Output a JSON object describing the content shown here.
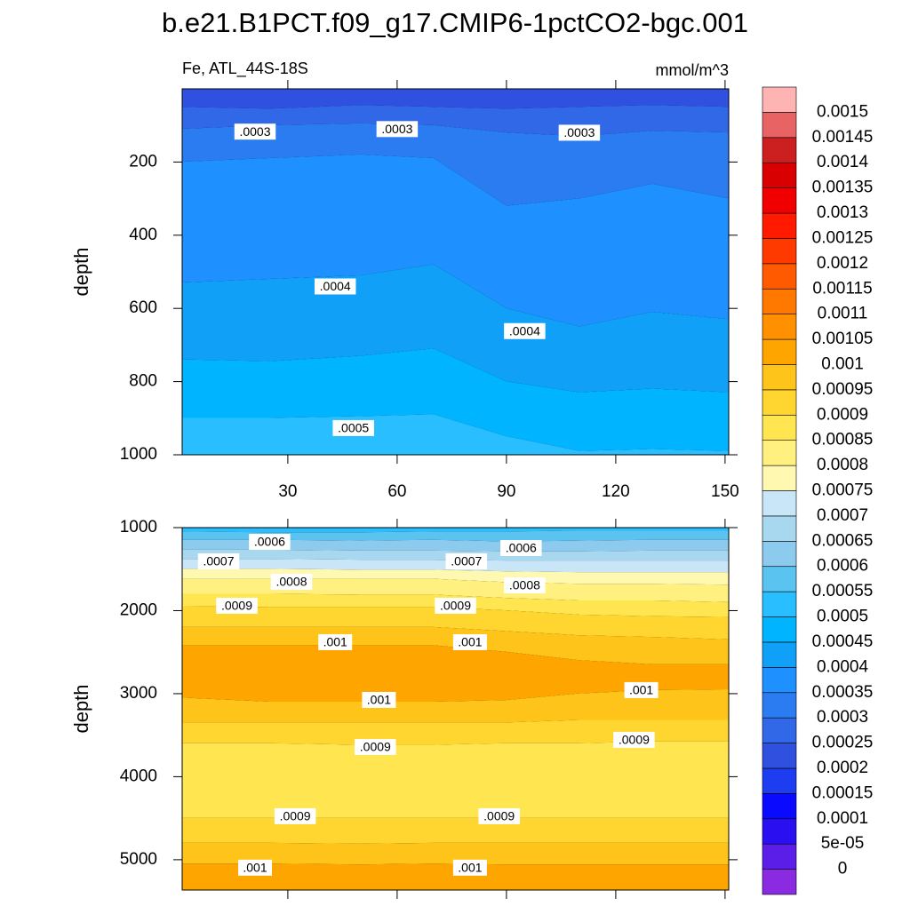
{
  "chart_data": [
    {
      "type": "contour",
      "title": "b.e21.B1PCT.f09_g17.CMIP6-1pctCO2-bgc.001",
      "subtitle_left": "Fe, ATL_44S-18S",
      "subtitle_right": "mmol/m^3",
      "y_label": "depth",
      "x": [
        1,
        25,
        50,
        70,
        90,
        110,
        130,
        151
      ],
      "xlim": [
        1,
        151
      ],
      "xticks": [
        30,
        60,
        90,
        120,
        150
      ],
      "xtick_labels": true,
      "ylim": [
        0,
        1000
      ],
      "yticks": [
        200,
        400,
        600,
        800,
        1000
      ],
      "y_reversed": true,
      "bands": [
        {
          "level": 0.0002,
          "bottom": [
            50,
            55,
            45,
            50,
            55,
            50,
            45,
            50
          ]
        },
        {
          "level": 0.00025,
          "bottom": [
            110,
            100,
            95,
            100,
            120,
            130,
            115,
            120
          ]
        },
        {
          "level": 0.0003,
          "bottom": [
            200,
            190,
            180,
            190,
            320,
            300,
            260,
            300
          ]
        },
        {
          "level": 0.00035,
          "bottom": [
            530,
            520,
            510,
            480,
            600,
            650,
            610,
            630
          ]
        },
        {
          "level": 0.0004,
          "bottom": [
            740,
            745,
            730,
            710,
            800,
            830,
            820,
            830
          ]
        },
        {
          "level": 0.00045,
          "bottom": [
            900,
            900,
            895,
            890,
            950,
            990,
            985,
            990
          ]
        },
        {
          "level": 0.0005
        }
      ],
      "contour_labels": [
        {
          "value": 0.0003,
          "label": ".0003",
          "x": 21,
          "depth": 117
        },
        {
          "value": 0.0003,
          "label": ".0003",
          "x": 60,
          "depth": 110
        },
        {
          "value": 0.0003,
          "label": ".0003",
          "x": 110,
          "depth": 120
        },
        {
          "value": 0.0004,
          "label": ".0004",
          "x": 43,
          "depth": 540
        },
        {
          "value": 0.0004,
          "label": ".0004",
          "x": 95,
          "depth": 662
        },
        {
          "value": 0.0005,
          "label": ".0005",
          "x": 48,
          "depth": 927
        }
      ]
    },
    {
      "type": "contour",
      "y_label": "depth",
      "x": [
        1,
        25,
        50,
        70,
        90,
        110,
        130,
        151
      ],
      "xlim": [
        1,
        151
      ],
      "xticks": [
        30,
        60,
        90,
        120,
        150
      ],
      "xtick_labels": false,
      "ylim": [
        1000,
        5365
      ],
      "yticks": [
        1000,
        2000,
        3000,
        4000,
        5000
      ],
      "y_reversed": true,
      "bands": [
        {
          "level": 0.0005,
          "bottom": [
            1050,
            1060,
            1060,
            1050,
            1050,
            1040,
            1040,
            1040
          ]
        },
        {
          "level": 0.00055,
          "bottom": [
            1150,
            1150,
            1160,
            1150,
            1170,
            1160,
            1150,
            1150
          ]
        },
        {
          "level": 0.0006,
          "bottom": [
            1270,
            1270,
            1280,
            1280,
            1290,
            1290,
            1280,
            1280
          ]
        },
        {
          "level": 0.00065,
          "bottom": [
            1380,
            1380,
            1390,
            1390,
            1400,
            1400,
            1400,
            1400
          ]
        },
        {
          "level": 0.0007,
          "bottom": [
            1500,
            1500,
            1510,
            1510,
            1530,
            1540,
            1540,
            1540
          ]
        },
        {
          "level": 0.00075,
          "bottom": [
            1620,
            1620,
            1620,
            1620,
            1660,
            1680,
            1680,
            1690
          ]
        },
        {
          "level": 0.0008,
          "bottom": [
            1800,
            1800,
            1810,
            1810,
            1850,
            1880,
            1880,
            1900
          ]
        },
        {
          "level": 0.00085,
          "bottom": [
            1950,
            1960,
            1960,
            1960,
            2000,
            2050,
            2070,
            2080
          ]
        },
        {
          "level": 0.0009,
          "bottom": [
            2200,
            2200,
            2200,
            2200,
            2250,
            2300,
            2320,
            2350
          ]
        },
        {
          "level": 0.00095,
          "bottom": [
            2420,
            2420,
            2420,
            2420,
            2500,
            2600,
            2650,
            2650
          ]
        },
        {
          "level": 0.001,
          "bottom": [
            3050,
            3100,
            3100,
            3100,
            3080,
            3000,
            2960,
            2950
          ]
        },
        {
          "level": 0.00095,
          "bottom": [
            3350,
            3350,
            3350,
            3350,
            3350,
            3320,
            3320,
            3320
          ]
        },
        {
          "level": 0.0009,
          "bottom": [
            3600,
            3600,
            3620,
            3620,
            3600,
            3600,
            3580,
            3580
          ]
        },
        {
          "level": 0.00085,
          "bottom": [
            4500,
            4500,
            4500,
            4500,
            4500,
            4500,
            4500,
            4500
          ]
        },
        {
          "level": 0.0009,
          "bottom": [
            4800,
            4800,
            4810,
            4800,
            4800,
            4800,
            4800,
            4800
          ]
        },
        {
          "level": 0.00095,
          "bottom": [
            5050,
            5050,
            5060,
            5050,
            5060,
            5060,
            5060,
            5060
          ]
        },
        {
          "level": 0.001
        }
      ],
      "contour_labels": [
        {
          "value": 0.0006,
          "label": ".0006",
          "x": 25,
          "depth": 1171
        },
        {
          "value": 0.0006,
          "label": ".0006",
          "x": 94,
          "depth": 1246
        },
        {
          "value": 0.0007,
          "label": ".0007",
          "x": 11,
          "depth": 1406
        },
        {
          "value": 0.0007,
          "label": ".0007",
          "x": 79,
          "depth": 1406
        },
        {
          "value": 0.0008,
          "label": ".0008",
          "x": 31,
          "depth": 1652
        },
        {
          "value": 0.0008,
          "label": ".0008",
          "x": 95,
          "depth": 1695
        },
        {
          "value": 0.0009,
          "label": ".0009",
          "x": 16,
          "depth": 1941
        },
        {
          "value": 0.0009,
          "label": ".0009",
          "x": 76,
          "depth": 1941
        },
        {
          "value": 0.001,
          "label": ".001",
          "x": 43,
          "depth": 2380
        },
        {
          "value": 0.001,
          "label": ".001",
          "x": 80,
          "depth": 2380
        },
        {
          "value": 0.001,
          "label": ".001",
          "x": 55,
          "depth": 3075
        },
        {
          "value": 0.001,
          "label": ".001",
          "x": 127,
          "depth": 2957
        },
        {
          "value": 0.0009,
          "label": ".0009",
          "x": 54,
          "depth": 3642
        },
        {
          "value": 0.0009,
          "label": ".0009",
          "x": 125,
          "depth": 3556
        },
        {
          "value": 0.0009,
          "label": ".0009",
          "x": 32,
          "depth": 4476
        },
        {
          "value": 0.0009,
          "label": ".0009",
          "x": 88,
          "depth": 4476
        },
        {
          "value": 0.001,
          "label": ".001",
          "x": 21,
          "depth": 5096
        },
        {
          "value": 0.001,
          "label": ".001",
          "x": 80,
          "depth": 5096
        }
      ]
    },
    {
      "type": "colorbar",
      "levels": [
        0,
        {
          "value": 5e-05,
          "label": "5e-05"
        },
        0.0001,
        0.00015,
        0.0002,
        0.00025,
        0.0003,
        0.00035,
        0.0004,
        0.00045,
        0.0005,
        0.00055,
        0.0006,
        0.00065,
        0.0007,
        0.00075,
        0.0008,
        0.00085,
        0.0009,
        0.00095,
        0.001,
        0.00105,
        0.0011,
        0.00115,
        0.0012,
        0.00125,
        0.0013,
        0.00135,
        0.0014,
        0.00145,
        0.0015
      ],
      "colors": [
        "#8a2be2",
        "#5a1ee8",
        "#2a10f0",
        "#0a0aff",
        "#1e3cf0",
        "#3050e0",
        "#3068e8",
        "#2a7cf0",
        "#1e90ff",
        "#10a0f8",
        "#00b4ff",
        "#28beff",
        "#5ac3f0",
        "#8ccaee",
        "#a8d8f0",
        "#c8e6f8",
        "#fff8b0",
        "#fff080",
        "#ffe650",
        "#ffd530",
        "#ffc41a",
        "#ffa500",
        "#ff9000",
        "#ff7800",
        "#ff5a00",
        "#ff3a00",
        "#ff1a00",
        "#f00000",
        "#d80000",
        "#cc2020",
        "#e86464",
        "#ffb4b4"
      ]
    }
  ]
}
